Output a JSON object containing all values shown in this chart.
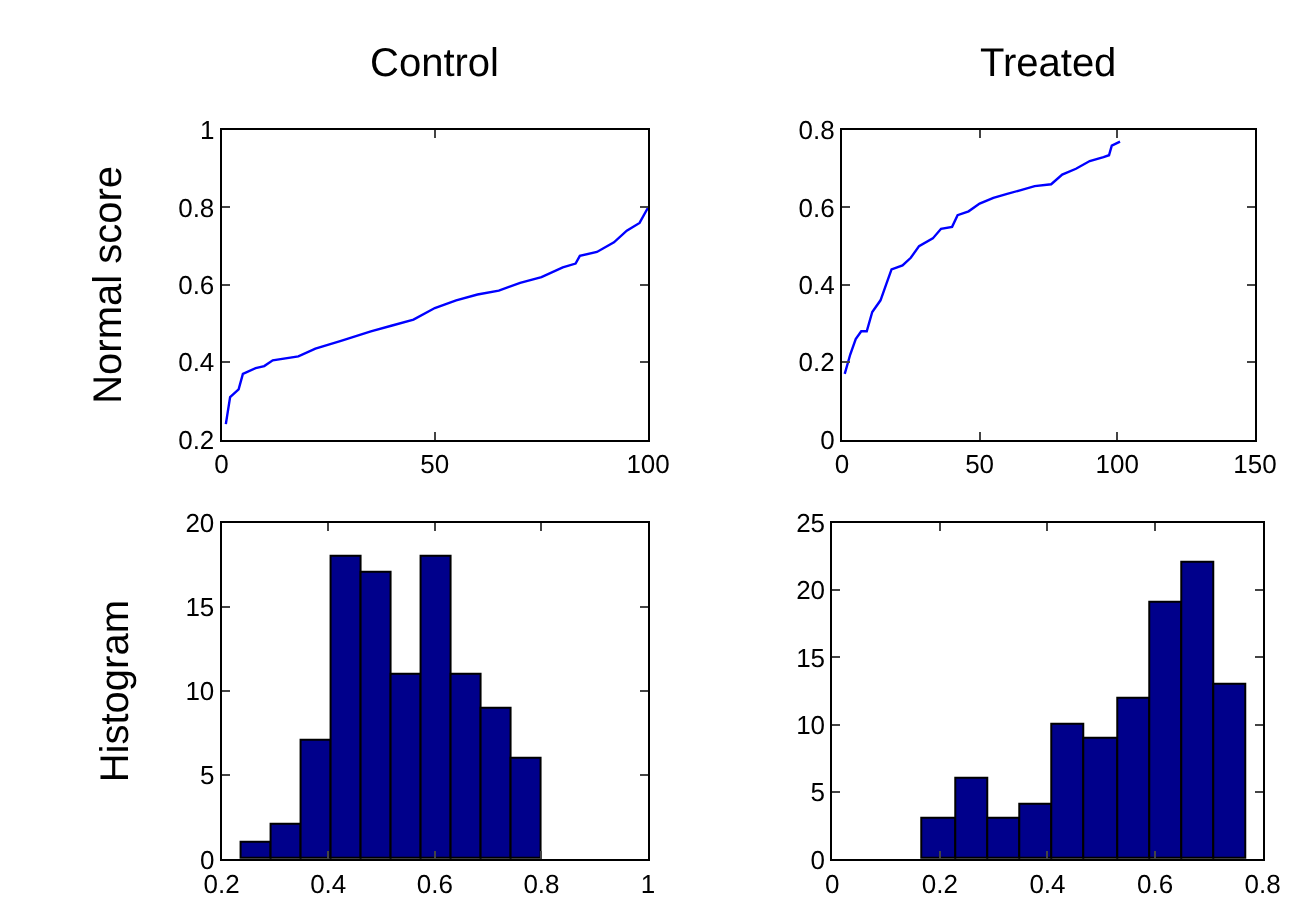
{
  "chart_data": [
    {
      "type": "line",
      "title": "Control",
      "ylabel": "Normal score",
      "series": [
        {
          "color": "#0000ff",
          "x": [
            1,
            2,
            4,
            5,
            8,
            10,
            12,
            18,
            22,
            28,
            35,
            40,
            45,
            50,
            55,
            60,
            65,
            70,
            75,
            80,
            83,
            84,
            88,
            92,
            95,
            98,
            100
          ],
          "values": [
            0.24,
            0.31,
            0.33,
            0.37,
            0.385,
            0.39,
            0.405,
            0.415,
            0.435,
            0.455,
            0.48,
            0.495,
            0.51,
            0.54,
            0.56,
            0.575,
            0.585,
            0.605,
            0.62,
            0.645,
            0.655,
            0.675,
            0.685,
            0.71,
            0.74,
            0.76,
            0.8
          ]
        }
      ],
      "xlim": [
        0,
        100
      ],
      "xticks": [
        0,
        50,
        100
      ],
      "ylim": [
        0.2,
        1
      ],
      "yticks": [
        0.2,
        0.4,
        0.6,
        0.8,
        1
      ]
    },
    {
      "type": "line",
      "title": "Treated",
      "series": [
        {
          "color": "#0000ff",
          "x": [
            1,
            3,
            5,
            7,
            9,
            11,
            14,
            16,
            18,
            22,
            25,
            28,
            33,
            36,
            40,
            42,
            46,
            50,
            55,
            60,
            65,
            70,
            76,
            80,
            85,
            90,
            95,
            97,
            98,
            101
          ],
          "values": [
            0.17,
            0.22,
            0.26,
            0.28,
            0.28,
            0.33,
            0.36,
            0.4,
            0.44,
            0.45,
            0.47,
            0.5,
            0.52,
            0.545,
            0.55,
            0.58,
            0.59,
            0.61,
            0.625,
            0.635,
            0.645,
            0.655,
            0.66,
            0.685,
            0.7,
            0.72,
            0.73,
            0.735,
            0.76,
            0.77
          ]
        }
      ],
      "xlim": [
        0,
        150
      ],
      "xticks": [
        0,
        50,
        100,
        150
      ],
      "ylim": [
        0,
        0.8
      ],
      "yticks": [
        0,
        0.2,
        0.4,
        0.6,
        0.8
      ]
    },
    {
      "type": "histogram",
      "ylabel": "Histogram",
      "color": "#00008b",
      "bins": [
        0.237,
        0.294,
        0.35,
        0.406,
        0.463,
        0.519,
        0.575,
        0.631,
        0.688,
        0.744,
        0.8
      ],
      "values": [
        1,
        2,
        7,
        18,
        17,
        11,
        18,
        11,
        9,
        6
      ],
      "xlim": [
        0.2,
        1
      ],
      "xticks": [
        0.2,
        0.4,
        0.6,
        0.8,
        1
      ],
      "ylim": [
        0,
        20
      ],
      "yticks": [
        0,
        5,
        10,
        15,
        20
      ]
    },
    {
      "type": "histogram",
      "color": "#00008b",
      "bins": [
        0.168,
        0.229,
        0.289,
        0.35,
        0.41,
        0.47,
        0.53,
        0.591,
        0.651,
        0.711,
        0.771
      ],
      "values": [
        3,
        6,
        3,
        4,
        10,
        9,
        12,
        19,
        22,
        13
      ],
      "xlim": [
        0,
        0.8
      ],
      "xticks": [
        0,
        0.2,
        0.4,
        0.6,
        0.8
      ],
      "ylim": [
        0,
        25
      ],
      "yticks": [
        0,
        5,
        10,
        15,
        20,
        25
      ]
    }
  ]
}
